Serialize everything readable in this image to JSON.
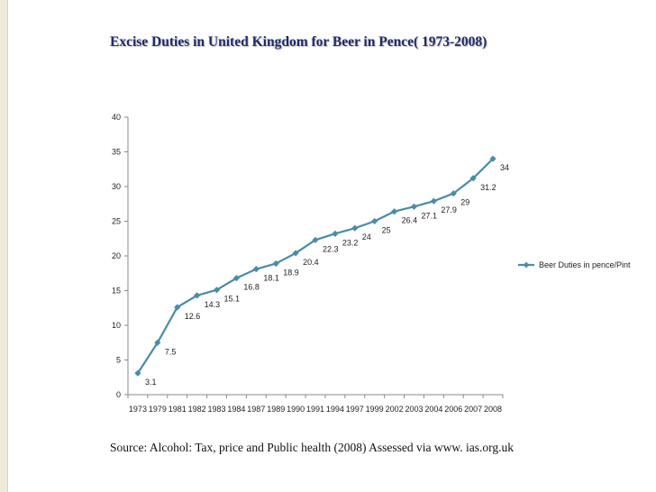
{
  "slide": {
    "title": "Excise Duties in United Kingdom for Beer  in Pence( 1973-2008)",
    "source": "Source: Alcohol: Tax, price and Public health (2008) Assessed via www. ias.org.uk"
  },
  "chart_data": {
    "type": "line",
    "title": "",
    "xlabel": "",
    "ylabel": "",
    "categories": [
      "1973",
      "1979",
      "1981",
      "1982",
      "1983",
      "1984",
      "1987",
      "1989",
      "1990",
      "1991",
      "1994",
      "1997",
      "1999",
      "2002",
      "2003",
      "2004",
      "2006",
      "2007",
      "2008"
    ],
    "series": [
      {
        "name": "Beer Duties in pence/Pint",
        "values": [
          3.1,
          7.5,
          12.6,
          14.3,
          15.1,
          16.8,
          18.1,
          18.9,
          20.4,
          22.3,
          23.2,
          24,
          25,
          26.4,
          27.1,
          27.9,
          29,
          31.2,
          34
        ],
        "labels": [
          "3.1",
          "7.5",
          "12.6",
          "14.3",
          "15.1",
          "16.8",
          "18.1",
          "18.9",
          "20.4",
          "22.3",
          "23.2",
          "24",
          "25",
          "26.4",
          "27.1",
          "27.9",
          "29",
          "31.2",
          "34"
        ],
        "color": "#4a8ca8"
      }
    ],
    "ylim": [
      0,
      40
    ],
    "yticks": [
      "0",
      "5",
      "10",
      "15",
      "20",
      "25",
      "30",
      "35",
      "40"
    ],
    "grid": false,
    "legend": "right"
  }
}
